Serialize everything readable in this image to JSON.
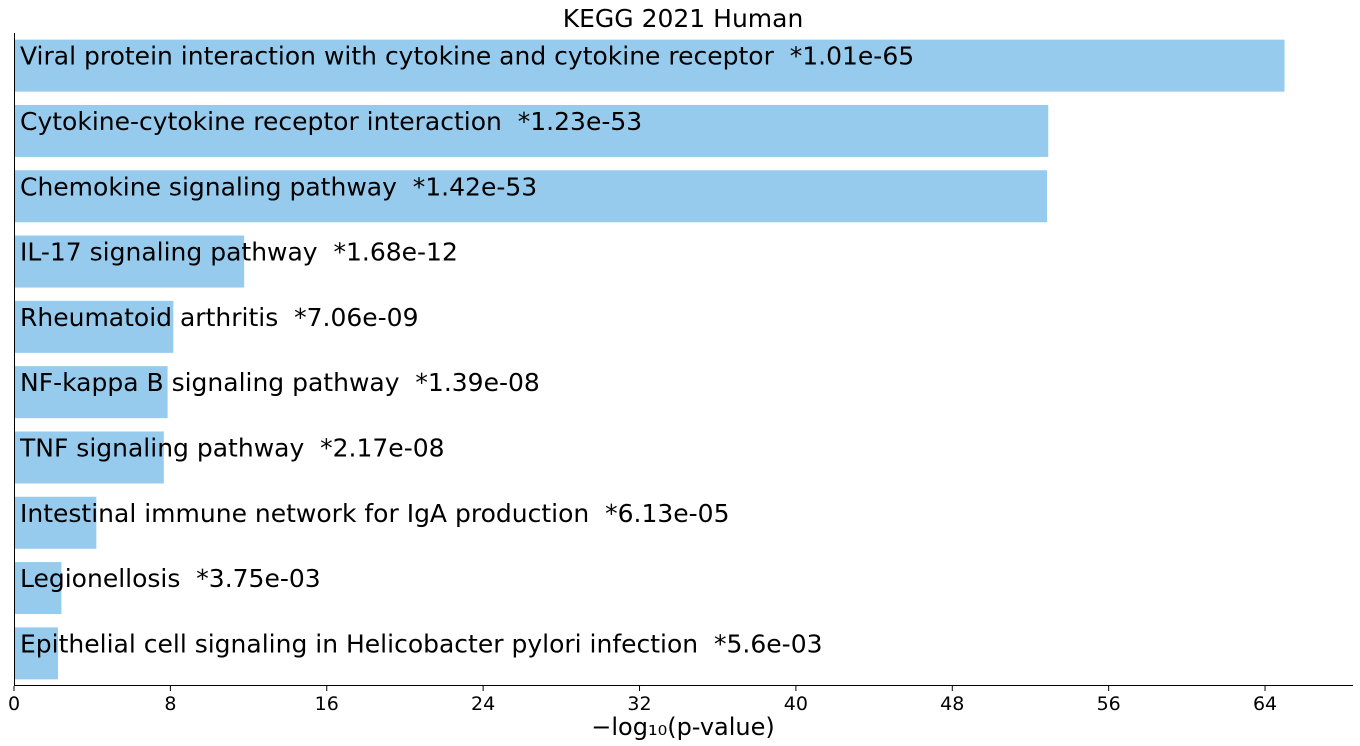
{
  "chart_data": {
    "type": "bar",
    "orientation": "horizontal",
    "title": "KEGG 2021 Human",
    "xlabel": "−log₁₀(p-value)",
    "ylabel": "",
    "xlim": [
      0,
      68.5
    ],
    "xticks": [
      0,
      8,
      16,
      24,
      32,
      40,
      48,
      56,
      64
    ],
    "grid": false,
    "bar_color": "#97CBED",
    "categories": [
      "Viral protein interaction with cytokine and cytokine receptor",
      "Cytokine-cytokine receptor interaction",
      "Chemokine signaling pathway",
      "IL-17 signaling pathway",
      "Rheumatoid arthritis",
      "NF-kappa B signaling pathway",
      "TNF signaling pathway",
      "Intestinal immune network for IgA production",
      "Legionellosis",
      "Epithelial cell signaling in Helicobacter pylori infection"
    ],
    "pvalue_labels": [
      "*1.01e-65",
      "*1.23e-53",
      "*1.42e-53",
      "*1.68e-12",
      "*7.06e-09",
      "*1.39e-08",
      "*2.17e-08",
      "*6.13e-05",
      "*3.75e-03",
      "*5.6e-03"
    ],
    "values": [
      64.996,
      52.91,
      52.848,
      11.775,
      8.151,
      7.857,
      7.664,
      4.213,
      2.426,
      2.252
    ]
  }
}
